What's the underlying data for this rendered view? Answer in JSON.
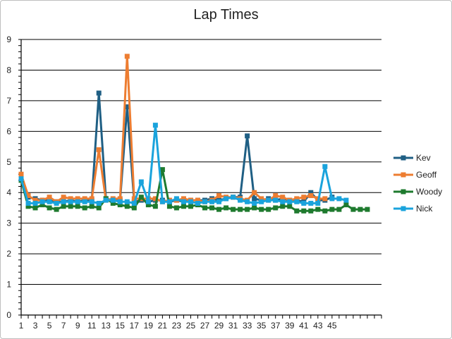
{
  "chart_data": {
    "type": "line",
    "title": "Lap Times",
    "xlabel": "",
    "ylabel": "",
    "ylim": [
      0,
      9
    ],
    "yticks": [
      0,
      1,
      2,
      3,
      4,
      5,
      6,
      7,
      8,
      9
    ],
    "xlim": [
      1,
      52
    ],
    "xtick_labels": [
      1,
      3,
      5,
      7,
      9,
      11,
      13,
      15,
      17,
      19,
      21,
      23,
      25,
      27,
      29,
      31,
      33,
      35,
      37,
      39,
      41,
      43,
      45
    ],
    "grid": true,
    "legend": "right",
    "series": [
      {
        "name": "Kev",
        "color": "#1f5f84",
        "values": [
          4.5,
          3.85,
          3.8,
          3.75,
          3.75,
          3.7,
          3.7,
          3.75,
          3.7,
          3.75,
          3.75,
          7.25,
          3.8,
          3.75,
          3.75,
          6.8,
          3.7,
          3.75,
          3.7,
          3.75,
          3.75,
          3.7,
          3.75,
          3.7,
          3.75,
          3.75,
          3.75,
          3.8,
          3.75,
          3.8,
          3.85,
          3.85,
          5.85,
          3.8,
          3.75,
          3.8,
          3.75,
          3.8,
          3.75,
          3.75,
          3.7,
          4.0,
          3.75,
          3.75,
          3.85
        ]
      },
      {
        "name": "Geoff",
        "color": "#ed7d31",
        "values": [
          4.6,
          3.9,
          3.75,
          3.75,
          3.85,
          3.7,
          3.85,
          3.8,
          3.8,
          3.8,
          3.8,
          5.4,
          3.75,
          3.8,
          3.8,
          8.45,
          3.8,
          3.8,
          3.8,
          3.8,
          3.7,
          3.75,
          3.75,
          3.8,
          3.75,
          3.75,
          3.7,
          3.75,
          3.9,
          3.85,
          3.85,
          3.8,
          3.75,
          4.0,
          3.8,
          3.75,
          3.9,
          3.85,
          3.75,
          3.8,
          3.85,
          3.9,
          3.8,
          3.8
        ]
      },
      {
        "name": "Woody",
        "color": "#1e7a2e",
        "values": [
          4.4,
          3.55,
          3.5,
          3.6,
          3.5,
          3.45,
          3.55,
          3.55,
          3.55,
          3.5,
          3.55,
          3.5,
          3.8,
          3.65,
          3.6,
          3.55,
          3.5,
          3.85,
          3.6,
          3.55,
          4.75,
          3.55,
          3.5,
          3.55,
          3.55,
          3.6,
          3.5,
          3.5,
          3.45,
          3.5,
          3.45,
          3.45,
          3.45,
          3.5,
          3.45,
          3.45,
          3.5,
          3.55,
          3.55,
          3.4,
          3.4,
          3.4,
          3.45,
          3.4,
          3.45,
          3.45,
          3.6,
          3.45,
          3.45,
          3.45
        ]
      },
      {
        "name": "Nick",
        "color": "#1aa3dc",
        "values": [
          4.45,
          3.65,
          3.65,
          3.7,
          3.7,
          3.65,
          3.7,
          3.7,
          3.7,
          3.7,
          3.7,
          3.65,
          3.75,
          3.75,
          3.7,
          3.7,
          3.65,
          4.35,
          3.7,
          6.2,
          3.7,
          3.7,
          3.8,
          3.7,
          3.7,
          3.65,
          3.7,
          3.7,
          3.7,
          3.8,
          3.85,
          3.75,
          3.7,
          3.65,
          3.7,
          3.75,
          3.75,
          3.7,
          3.7,
          3.7,
          3.65,
          3.65,
          3.65,
          4.85,
          3.8,
          3.8,
          3.75
        ]
      }
    ]
  }
}
